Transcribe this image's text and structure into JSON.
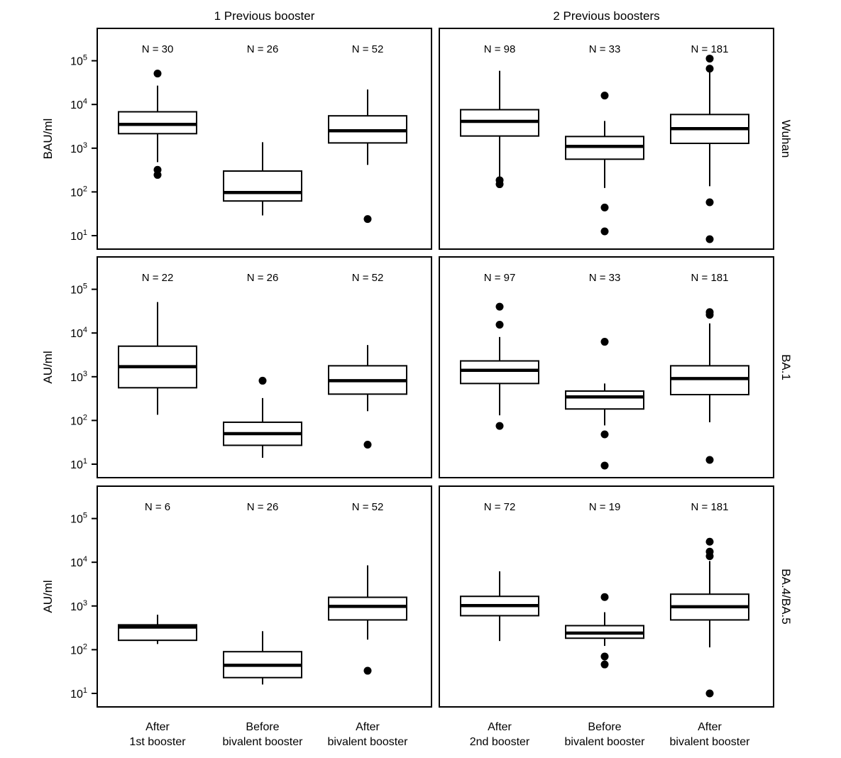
{
  "chart_data": {
    "type": "boxplot",
    "scale": "log10",
    "y_ticks_exponent": [
      1,
      2,
      3,
      4,
      5
    ],
    "tick_base": "10",
    "column_headers": [
      "1 Previous booster",
      "2 Previous boosters"
    ],
    "row_labels": [
      "Wuhan",
      "BA.1",
      "BA.4/BA.5"
    ],
    "y_labels": [
      "BAU/ml",
      "AU/ml",
      "AU/ml"
    ],
    "categories": [
      [
        [
          "After",
          "1st booster"
        ],
        [
          "Before",
          "bivalent booster"
        ],
        [
          "After",
          "bivalent booster"
        ]
      ],
      [
        [
          "After",
          "2nd booster"
        ],
        [
          "Before",
          "bivalent booster"
        ],
        [
          "After",
          "bivalent booster"
        ]
      ]
    ],
    "panels": [
      {
        "row": 0,
        "col": 0,
        "groups": [
          {
            "n": "N = 30",
            "low": 480,
            "q1": 2150,
            "median": 3500,
            "q3": 6800,
            "high": 27000,
            "outliers": [
              51000,
              320,
              245
            ]
          },
          {
            "n": "N = 26",
            "low": 29,
            "q1": 62,
            "median": 97,
            "q3": 300,
            "high": 1370,
            "outliers": []
          },
          {
            "n": "N = 52",
            "low": 415,
            "q1": 1320,
            "median": 2500,
            "q3": 5500,
            "high": 22000,
            "outliers": [
              24
            ]
          }
        ]
      },
      {
        "row": 0,
        "col": 1,
        "groups": [
          {
            "n": "N = 98",
            "low": 196,
            "q1": 1900,
            "median": 4100,
            "q3": 7600,
            "high": 59000,
            "outliers": [
              185,
              150
            ]
          },
          {
            "n": "N = 33",
            "low": 123,
            "q1": 560,
            "median": 1100,
            "q3": 1850,
            "high": 4200,
            "outliers": [
              16000,
              44,
              12.5
            ]
          },
          {
            "n": "N = 181",
            "low": 135,
            "q1": 1290,
            "median": 2800,
            "q3": 5900,
            "high": 61000,
            "outliers": [
              112000,
              66000,
              58,
              8.3
            ]
          }
        ]
      },
      {
        "row": 1,
        "col": 0,
        "groups": [
          {
            "n": "N = 22",
            "low": 135,
            "q1": 560,
            "median": 1700,
            "q3": 5000,
            "high": 51000,
            "outliers": []
          },
          {
            "n": "N = 26",
            "low": 14,
            "q1": 27,
            "median": 50,
            "q3": 91,
            "high": 325,
            "outliers": [
              810
            ]
          },
          {
            "n": "N = 52",
            "low": 163,
            "q1": 400,
            "median": 810,
            "q3": 1780,
            "high": 5300,
            "outliers": [
              28
            ]
          }
        ]
      },
      {
        "row": 1,
        "col": 1,
        "groups": [
          {
            "n": "N = 97",
            "low": 131,
            "q1": 700,
            "median": 1400,
            "q3": 2300,
            "high": 8100,
            "outliers": [
              40000,
              15500,
              75
            ]
          },
          {
            "n": "N = 33",
            "low": 77,
            "q1": 183,
            "median": 345,
            "q3": 470,
            "high": 700,
            "outliers": [
              6300,
              48,
              9.3
            ]
          },
          {
            "n": "N = 181",
            "low": 91,
            "q1": 390,
            "median": 910,
            "q3": 1780,
            "high": 16600,
            "outliers": [
              30000,
              26000,
              12.5
            ]
          }
        ]
      },
      {
        "row": 2,
        "col": 0,
        "groups": [
          {
            "n": "N = 6",
            "low": 135,
            "q1": 164,
            "median": 330,
            "q3": 370,
            "high": 630,
            "outliers": []
          },
          {
            "n": "N = 26",
            "low": 16,
            "q1": 23,
            "median": 44,
            "q3": 90,
            "high": 265,
            "outliers": []
          },
          {
            "n": "N = 52",
            "low": 170,
            "q1": 480,
            "median": 980,
            "q3": 1580,
            "high": 8500,
            "outliers": [
              33
            ]
          }
        ]
      },
      {
        "row": 2,
        "col": 1,
        "groups": [
          {
            "n": "N = 72",
            "low": 158,
            "q1": 600,
            "median": 1020,
            "q3": 1660,
            "high": 6200,
            "outliers": []
          },
          {
            "n": "N = 19",
            "low": 122,
            "q1": 183,
            "median": 240,
            "q3": 355,
            "high": 720,
            "outliers": [
              1600,
              70,
              46
            ]
          },
          {
            "n": "N = 181",
            "low": 113,
            "q1": 480,
            "median": 960,
            "q3": 1860,
            "high": 10700,
            "outliers": [
              29500,
              17500,
              13800,
              10
            ]
          }
        ]
      }
    ]
  }
}
